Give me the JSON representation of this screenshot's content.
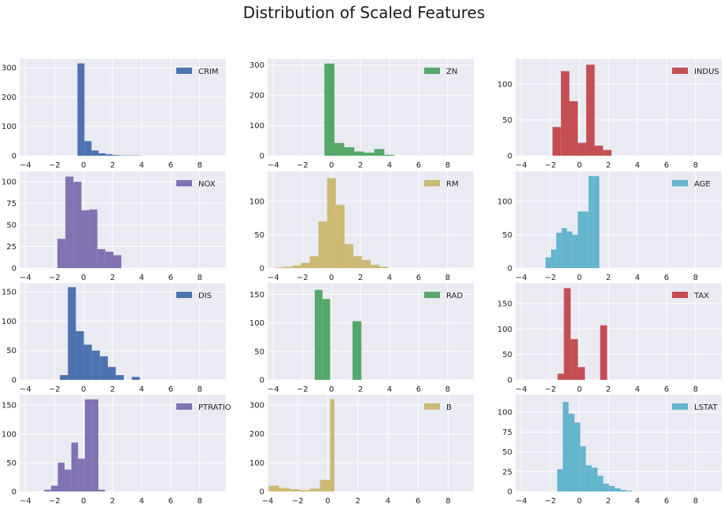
{
  "title": "Distribution of Scaled Features",
  "colors": {
    "background": "#eaeaf2",
    "grid": "#ffffff",
    "blue": "#4c72b0",
    "green": "#55a868",
    "red": "#c44e52",
    "purple": "#8172b2",
    "gold": "#ccb974",
    "cyan": "#64b5cd"
  },
  "chart_data": [
    {
      "type": "bar",
      "name": "CRIM",
      "legend": "CRIM",
      "color": "#4c72b0",
      "xlim": [
        -4.4,
        9.8
      ],
      "ylim": [
        0,
        330
      ],
      "xticks": [
        -4,
        -2,
        0,
        2,
        4,
        6,
        8
      ],
      "yticks": [
        0,
        100,
        200,
        300
      ],
      "bins": [
        [
          -0.42,
          0.06,
          315
        ],
        [
          0.06,
          0.55,
          50
        ],
        [
          0.55,
          1.04,
          18
        ],
        [
          1.04,
          1.52,
          8
        ],
        [
          1.52,
          2.01,
          5
        ],
        [
          2.01,
          2.5,
          2
        ],
        [
          2.5,
          2.98,
          1
        ],
        [
          2.98,
          3.47,
          1
        ],
        [
          3.47,
          3.96,
          1
        ]
      ]
    },
    {
      "type": "bar",
      "name": "ZN",
      "legend": "ZN",
      "color": "#55a868",
      "xlim": [
        -4.4,
        9.8
      ],
      "ylim": [
        0,
        320
      ],
      "xticks": [
        -4,
        -2,
        0,
        2,
        4,
        6,
        8
      ],
      "yticks": [
        0,
        100,
        200,
        300
      ],
      "bins": [
        [
          -0.49,
          0.2,
          305
        ],
        [
          0.2,
          0.88,
          42
        ],
        [
          0.88,
          1.57,
          28
        ],
        [
          1.57,
          2.26,
          14
        ],
        [
          2.26,
          2.95,
          10
        ],
        [
          2.95,
          3.64,
          22
        ],
        [
          3.64,
          4.33,
          3
        ]
      ]
    },
    {
      "type": "bar",
      "name": "INDUS",
      "legend": "INDUS",
      "color": "#c44e52",
      "xlim": [
        -4.4,
        9.8
      ],
      "ylim": [
        0,
        135
      ],
      "xticks": [
        -4,
        -2,
        0,
        2,
        4,
        6,
        8
      ],
      "yticks": [
        0,
        50,
        100
      ],
      "bins": [
        [
          -1.85,
          -1.27,
          40
        ],
        [
          -1.27,
          -0.69,
          118
        ],
        [
          -0.69,
          -0.11,
          76
        ],
        [
          -0.11,
          0.47,
          18
        ],
        [
          0.47,
          1.05,
          127
        ],
        [
          1.05,
          1.63,
          14
        ],
        [
          1.63,
          2.21,
          8
        ]
      ]
    },
    {
      "type": "bar",
      "name": "NOX",
      "legend": "NOX",
      "color": "#8172b2",
      "xlim": [
        -4.4,
        9.8
      ],
      "ylim": [
        0,
        112
      ],
      "xticks": [
        -4,
        -2,
        0,
        2,
        4,
        6,
        8
      ],
      "yticks": [
        0,
        25,
        50,
        75,
        100
      ],
      "bins": [
        [
          -1.8,
          -1.25,
          34
        ],
        [
          -1.25,
          -0.7,
          106
        ],
        [
          -0.7,
          -0.15,
          100
        ],
        [
          -0.15,
          0.4,
          67
        ],
        [
          0.4,
          0.95,
          68
        ],
        [
          0.95,
          1.5,
          22
        ],
        [
          1.5,
          2.05,
          19
        ],
        [
          2.05,
          2.6,
          15
        ]
      ]
    },
    {
      "type": "bar",
      "name": "RM",
      "legend": "RM",
      "color": "#ccb974",
      "xlim": [
        -4.4,
        9.8
      ],
      "ylim": [
        0,
        145
      ],
      "xticks": [
        -4,
        -2,
        0,
        2,
        4,
        6,
        8
      ],
      "yticks": [
        0,
        50,
        100
      ],
      "bins": [
        [
          -3.9,
          -3.3,
          1
        ],
        [
          -3.3,
          -2.7,
          2
        ],
        [
          -2.7,
          -2.1,
          4
        ],
        [
          -2.1,
          -1.5,
          8
        ],
        [
          -1.5,
          -0.9,
          18
        ],
        [
          -0.9,
          -0.3,
          70
        ],
        [
          -0.3,
          0.3,
          135
        ],
        [
          0.3,
          0.9,
          95
        ],
        [
          0.9,
          1.5,
          36
        ],
        [
          1.5,
          2.1,
          18
        ],
        [
          2.1,
          2.7,
          12
        ],
        [
          2.7,
          3.3,
          5
        ],
        [
          3.3,
          3.9,
          2
        ]
      ]
    },
    {
      "type": "bar",
      "name": "AGE",
      "legend": "AGE",
      "color": "#64b5cd",
      "xlim": [
        -4.4,
        9.8
      ],
      "ylim": [
        0,
        145
      ],
      "xticks": [
        -4,
        -2,
        0,
        2,
        4,
        6,
        8
      ],
      "yticks": [
        0,
        50,
        100
      ],
      "bins": [
        [
          -2.33,
          -1.96,
          16
        ],
        [
          -1.96,
          -1.59,
          28
        ],
        [
          -1.59,
          -1.22,
          53
        ],
        [
          -1.22,
          -0.85,
          60
        ],
        [
          -0.85,
          -0.48,
          55
        ],
        [
          -0.48,
          -0.11,
          50
        ],
        [
          -0.11,
          0.26,
          85
        ],
        [
          0.26,
          0.63,
          85
        ],
        [
          0.63,
          1.0,
          138
        ],
        [
          1.0,
          1.37,
          138
        ]
      ]
    },
    {
      "type": "bar",
      "name": "DIS",
      "legend": "DIS",
      "color": "#4c72b0",
      "xlim": [
        -4.4,
        9.8
      ],
      "ylim": [
        0,
        165
      ],
      "xticks": [
        -4,
        -2,
        0,
        2,
        4,
        6,
        8
      ],
      "yticks": [
        0,
        50,
        100,
        150
      ],
      "bins": [
        [
          -1.63,
          -1.08,
          8
        ],
        [
          -1.08,
          -0.53,
          158
        ],
        [
          -0.53,
          0.02,
          83
        ],
        [
          0.02,
          0.57,
          60
        ],
        [
          0.57,
          1.12,
          50
        ],
        [
          1.12,
          1.67,
          40
        ],
        [
          1.67,
          2.22,
          22
        ],
        [
          2.22,
          2.77,
          8
        ],
        [
          3.32,
          3.87,
          5
        ]
      ]
    },
    {
      "type": "bar",
      "name": "RAD",
      "legend": "RAD",
      "color": "#55a868",
      "xlim": [
        -4.4,
        9.8
      ],
      "ylim": [
        0,
        170
      ],
      "xticks": [
        -4,
        -2,
        0,
        2,
        4,
        6,
        8
      ],
      "yticks": [
        0,
        50,
        100,
        150
      ],
      "bins": [
        [
          -1.15,
          -0.62,
          158
        ],
        [
          -0.62,
          -0.09,
          142
        ],
        [
          1.45,
          2.06,
          103
        ]
      ]
    },
    {
      "type": "bar",
      "name": "TAX",
      "legend": "TAX",
      "color": "#c44e52",
      "xlim": [
        -4.4,
        9.8
      ],
      "ylim": [
        0,
        190
      ],
      "xticks": [
        -4,
        -2,
        0,
        2,
        4,
        6,
        8
      ],
      "yticks": [
        0,
        50,
        100,
        150
      ],
      "bins": [
        [
          -1.5,
          -1.07,
          12
        ],
        [
          -1.07,
          -0.6,
          180
        ],
        [
          -0.6,
          -0.1,
          80
        ],
        [
          -0.1,
          0.38,
          25
        ],
        [
          1.43,
          1.91,
          107
        ]
      ]
    },
    {
      "type": "bar",
      "name": "PTRATIO",
      "legend": "PTRATIO",
      "color": "#8172b2",
      "xlim": [
        -4.4,
        9.8
      ],
      "ylim": [
        0,
        168
      ],
      "xticks": [
        -4,
        -2,
        0,
        2,
        4,
        6,
        8
      ],
      "yticks": [
        0,
        50,
        100,
        150
      ],
      "bins": [
        [
          -2.7,
          -2.24,
          3
        ],
        [
          -2.24,
          -1.77,
          10
        ],
        [
          -1.77,
          -1.31,
          50
        ],
        [
          -1.31,
          -0.84,
          38
        ],
        [
          -0.84,
          -0.38,
          85
        ],
        [
          -0.38,
          0.09,
          57
        ],
        [
          0.09,
          0.55,
          160
        ],
        [
          0.55,
          1.02,
          160
        ],
        [
          1.02,
          1.48,
          3
        ]
      ]
    },
    {
      "type": "bar",
      "name": "B",
      "legend": "B",
      "color": "#ccb974",
      "xlim": [
        -4.0,
        9.7
      ],
      "ylim": [
        0,
        335
      ],
      "xticks": [
        -4,
        -2,
        0,
        2,
        4,
        6,
        8
      ],
      "yticks": [
        0,
        100,
        200,
        300
      ],
      "bins": [
        [
          -3.92,
          -3.24,
          20
        ],
        [
          -3.24,
          -2.56,
          12
        ],
        [
          -2.56,
          -1.88,
          8
        ],
        [
          -1.88,
          -1.2,
          5
        ],
        [
          -1.2,
          -0.52,
          10
        ],
        [
          -0.52,
          0.16,
          40
        ],
        [
          0.16,
          0.44,
          320
        ]
      ]
    },
    {
      "type": "bar",
      "name": "LSTAT",
      "legend": "LSTAT",
      "color": "#64b5cd",
      "xlim": [
        -4.4,
        9.8
      ],
      "ylim": [
        0,
        122
      ],
      "xticks": [
        -4,
        -2,
        0,
        2,
        4,
        6,
        8
      ],
      "yticks": [
        0,
        25,
        50,
        75,
        100
      ],
      "bins": [
        [
          -1.53,
          -1.14,
          28
        ],
        [
          -1.14,
          -0.74,
          113
        ],
        [
          -0.74,
          -0.34,
          98
        ],
        [
          -0.34,
          0.06,
          87
        ],
        [
          0.06,
          0.45,
          57
        ],
        [
          0.45,
          0.85,
          33
        ],
        [
          0.85,
          1.25,
          30
        ],
        [
          1.25,
          1.64,
          20
        ],
        [
          1.64,
          2.04,
          10
        ],
        [
          2.04,
          2.44,
          7
        ],
        [
          2.44,
          2.83,
          4
        ],
        [
          2.83,
          3.23,
          2
        ],
        [
          3.23,
          3.63,
          1
        ]
      ]
    }
  ]
}
